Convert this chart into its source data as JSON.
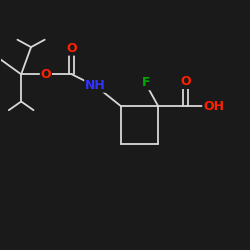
{
  "background_color": "#1a1a1a",
  "bond_color": "#d8d8d8",
  "atom_colors": {
    "O": "#ff2200",
    "N": "#3333ff",
    "F": "#00aa00",
    "H": "#d8d8d8",
    "C": "#d8d8d8"
  },
  "fig_width": 2.5,
  "fig_height": 2.5,
  "dpi": 100,
  "font_size": 8
}
